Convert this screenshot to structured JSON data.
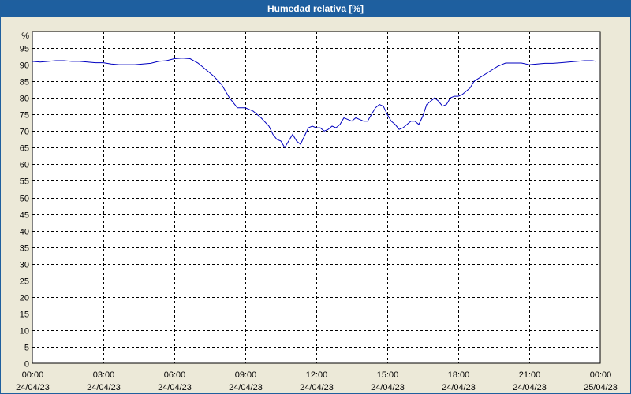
{
  "window": {
    "title": "Humedad relativa [%]"
  },
  "colors": {
    "line": "#0000C0",
    "titlebar": "#1E5F9F",
    "plot_bg": "#FFFFFF",
    "grid": "#000000"
  },
  "chart_data": {
    "type": "line",
    "title": "Humedad relativa [%]",
    "ylabel": "%",
    "ylim": [
      0,
      100
    ],
    "yticks": [
      0,
      5,
      10,
      15,
      20,
      25,
      30,
      35,
      40,
      45,
      50,
      55,
      60,
      65,
      70,
      75,
      80,
      85,
      90,
      95
    ],
    "xlim": [
      "24/04/23 00:00",
      "25/04/23 00:00"
    ],
    "xticks": [
      {
        "time": "00:00",
        "date": "24/04/23"
      },
      {
        "time": "03:00",
        "date": "24/04/23"
      },
      {
        "time": "06:00",
        "date": "24/04/23"
      },
      {
        "time": "09:00",
        "date": "24/04/23"
      },
      {
        "time": "12:00",
        "date": "24/04/23"
      },
      {
        "time": "15:00",
        "date": "24/04/23"
      },
      {
        "time": "18:00",
        "date": "24/04/23"
      },
      {
        "time": "21:00",
        "date": "24/04/23"
      },
      {
        "time": "00:00",
        "date": "25/04/23"
      }
    ],
    "grid": true,
    "series": [
      {
        "x": [
          "00:00",
          "00:20",
          "00:40",
          "01:00",
          "01:20",
          "01:40",
          "02:00",
          "02:20",
          "02:40",
          "03:00",
          "03:20",
          "03:40",
          "04:00",
          "04:20",
          "04:40",
          "05:00",
          "05:20",
          "05:40",
          "06:00",
          "06:20",
          "06:40",
          "07:00",
          "07:20",
          "07:40",
          "08:00",
          "08:20",
          "08:40",
          "09:00",
          "09:20",
          "09:40",
          "10:00",
          "10:10",
          "10:20",
          "10:30",
          "10:40",
          "10:50",
          "11:00",
          "11:10",
          "11:20",
          "11:30",
          "11:40",
          "11:50",
          "12:00",
          "12:10",
          "12:20",
          "12:30",
          "12:40",
          "12:50",
          "13:00",
          "13:10",
          "13:20",
          "13:30",
          "13:40",
          "13:50",
          "14:00",
          "14:10",
          "14:20",
          "14:30",
          "14:40",
          "14:50",
          "15:00",
          "15:10",
          "15:20",
          "15:30",
          "15:40",
          "15:50",
          "16:00",
          "16:10",
          "16:20",
          "16:30",
          "16:40",
          "16:50",
          "17:00",
          "17:10",
          "17:20",
          "17:30",
          "17:40",
          "17:50",
          "18:00",
          "18:10",
          "18:20",
          "18:30",
          "18:40",
          "19:00",
          "19:20",
          "19:40",
          "20:00",
          "20:20",
          "20:40",
          "21:00",
          "21:20",
          "21:40",
          "22:00",
          "22:20",
          "22:40",
          "23:00",
          "23:20",
          "23:40",
          "23:50"
        ],
        "y": [
          91,
          90.8,
          91,
          91.2,
          91.2,
          91,
          91,
          90.8,
          90.6,
          90.6,
          90.2,
          90,
          90,
          90,
          90.2,
          90.4,
          91,
          91.2,
          91.8,
          92,
          91.8,
          90.5,
          88.5,
          86.5,
          84,
          80,
          77,
          77,
          76,
          74,
          71.5,
          69,
          67.5,
          67,
          65,
          67,
          69,
          67,
          66,
          68.5,
          71,
          71.5,
          71,
          71,
          70,
          70.5,
          71.5,
          71,
          72,
          74,
          73.5,
          73,
          74,
          73.5,
          73,
          73,
          75,
          77,
          78,
          77.5,
          75,
          73,
          72,
          70.5,
          71,
          72,
          73,
          73,
          72,
          74.5,
          78,
          79,
          80,
          79,
          77.5,
          78,
          80,
          80.5,
          80.5,
          81,
          82,
          83,
          85,
          86.5,
          88,
          89.5,
          90.5,
          90.5,
          90.5,
          90,
          90.2,
          90.4,
          90.4,
          90.6,
          90.8,
          91,
          91.2,
          91.2,
          91
        ]
      }
    ]
  }
}
